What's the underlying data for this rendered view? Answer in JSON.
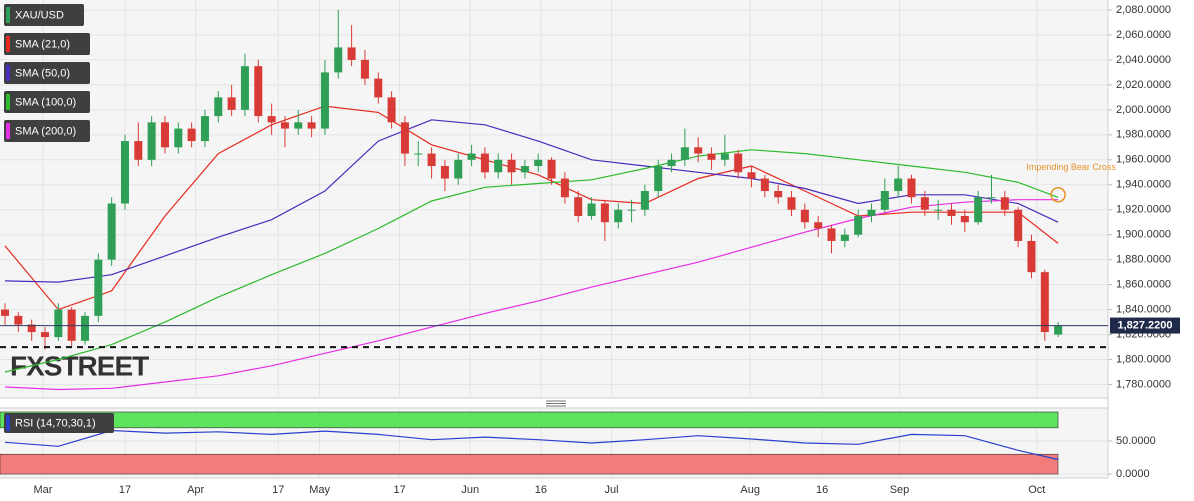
{
  "chart_data": [
    {
      "type": "candlestick",
      "name": "XAU/USD",
      "up_color": "#2e9f55",
      "down_color": "#d83b35",
      "x": [
        0,
        1,
        2,
        3,
        4,
        5,
        6,
        7,
        8,
        9,
        10,
        11,
        12,
        13,
        14,
        15,
        16,
        17,
        18,
        19,
        20,
        21,
        22,
        23,
        24,
        25,
        26,
        27,
        28,
        29,
        30,
        31,
        32,
        33,
        34,
        35,
        36,
        37,
        38,
        39,
        40,
        41,
        42,
        43,
        44,
        45,
        46,
        47,
        48,
        49,
        50,
        51,
        52,
        53,
        54,
        55,
        56,
        57,
        58,
        59,
        60,
        61,
        62,
        63,
        64,
        65,
        66,
        67,
        68,
        69,
        70,
        71,
        72,
        73,
        74,
        75,
        76,
        77,
        78,
        79
      ],
      "ohlc": [
        [
          1840,
          1845,
          1828,
          1835
        ],
        [
          1835,
          1838,
          1822,
          1828
        ],
        [
          1828,
          1832,
          1815,
          1822
        ],
        [
          1822,
          1826,
          1808,
          1818
        ],
        [
          1818,
          1845,
          1815,
          1840
        ],
        [
          1840,
          1842,
          1810,
          1815
        ],
        [
          1815,
          1838,
          1812,
          1835
        ],
        [
          1835,
          1885,
          1830,
          1880
        ],
        [
          1880,
          1930,
          1875,
          1925
        ],
        [
          1925,
          1980,
          1920,
          1975
        ],
        [
          1975,
          1990,
          1955,
          1960
        ],
        [
          1960,
          1995,
          1955,
          1990
        ],
        [
          1990,
          1995,
          1965,
          1970
        ],
        [
          1970,
          1990,
          1965,
          1985
        ],
        [
          1985,
          1990,
          1970,
          1975
        ],
        [
          1975,
          2000,
          1970,
          1995
        ],
        [
          1995,
          2015,
          1990,
          2010
        ],
        [
          2010,
          2020,
          1995,
          2000
        ],
        [
          2000,
          2045,
          1995,
          2035
        ],
        [
          2035,
          2040,
          1990,
          1995
        ],
        [
          1995,
          2005,
          1980,
          1990
        ],
        [
          1990,
          1995,
          1970,
          1985
        ],
        [
          1985,
          2000,
          1980,
          1990
        ],
        [
          1990,
          1995,
          1978,
          1985
        ],
        [
          1985,
          2040,
          1980,
          2030
        ],
        [
          2030,
          2080,
          2025,
          2050
        ],
        [
          2050,
          2068,
          2035,
          2040
        ],
        [
          2040,
          2048,
          2020,
          2025
        ],
        [
          2025,
          2030,
          2005,
          2010
        ],
        [
          2010,
          2015,
          1985,
          1990
        ],
        [
          1990,
          1995,
          1955,
          1965
        ],
        [
          1965,
          1975,
          1955,
          1965
        ],
        [
          1965,
          1970,
          1945,
          1955
        ],
        [
          1955,
          1960,
          1935,
          1945
        ],
        [
          1945,
          1965,
          1940,
          1960
        ],
        [
          1960,
          1972,
          1955,
          1965
        ],
        [
          1965,
          1970,
          1945,
          1950
        ],
        [
          1950,
          1965,
          1945,
          1960
        ],
        [
          1960,
          1965,
          1940,
          1950
        ],
        [
          1950,
          1960,
          1945,
          1955
        ],
        [
          1955,
          1965,
          1950,
          1960
        ],
        [
          1960,
          1962,
          1940,
          1945
        ],
        [
          1945,
          1950,
          1925,
          1930
        ],
        [
          1930,
          1935,
          1910,
          1915
        ],
        [
          1915,
          1930,
          1912,
          1925
        ],
        [
          1925,
          1928,
          1895,
          1910
        ],
        [
          1910,
          1925,
          1905,
          1920
        ],
        [
          1920,
          1928,
          1910,
          1920
        ],
        [
          1920,
          1940,
          1915,
          1935
        ],
        [
          1935,
          1960,
          1930,
          1955
        ],
        [
          1955,
          1965,
          1950,
          1960
        ],
        [
          1960,
          1985,
          1955,
          1970
        ],
        [
          1970,
          1978,
          1958,
          1965
        ],
        [
          1965,
          1970,
          1952,
          1960
        ],
        [
          1960,
          1980,
          1955,
          1965
        ],
        [
          1965,
          1968,
          1945,
          1950
        ],
        [
          1950,
          1955,
          1938,
          1945
        ],
        [
          1945,
          1948,
          1930,
          1935
        ],
        [
          1935,
          1940,
          1925,
          1930
        ],
        [
          1930,
          1935,
          1915,
          1920
        ],
        [
          1920,
          1925,
          1905,
          1910
        ],
        [
          1910,
          1915,
          1898,
          1905
        ],
        [
          1905,
          1908,
          1885,
          1895
        ],
        [
          1895,
          1905,
          1890,
          1900
        ],
        [
          1900,
          1920,
          1898,
          1915
        ],
        [
          1915,
          1925,
          1910,
          1920
        ],
        [
          1920,
          1945,
          1918,
          1935
        ],
        [
          1935,
          1955,
          1930,
          1945
        ],
        [
          1945,
          1948,
          1925,
          1930
        ],
        [
          1930,
          1935,
          1915,
          1920
        ],
        [
          1920,
          1928,
          1912,
          1920
        ],
        [
          1920,
          1925,
          1908,
          1915
        ],
        [
          1915,
          1920,
          1902,
          1910
        ],
        [
          1910,
          1935,
          1908,
          1930
        ],
        [
          1930,
          1948,
          1925,
          1930
        ],
        [
          1930,
          1935,
          1915,
          1920
        ],
        [
          1920,
          1922,
          1890,
          1895
        ],
        [
          1895,
          1900,
          1865,
          1870
        ],
        [
          1870,
          1872,
          1815,
          1822
        ],
        [
          1820,
          1830,
          1818,
          1827.22
        ]
      ],
      "series": [
        {
          "name": "SMA (21,0)",
          "color": "#e52a1f",
          "x": [
            0,
            4,
            8,
            12,
            16,
            20,
            24,
            28,
            32,
            36,
            40,
            44,
            48,
            52,
            56,
            60,
            64,
            68,
            72,
            76,
            79
          ],
          "values": [
            1891,
            1840,
            1855,
            1915,
            1965,
            1988,
            2003,
            1998,
            1972,
            1960,
            1948,
            1928,
            1925,
            1945,
            1955,
            1935,
            1915,
            1918,
            1918,
            1918,
            1893
          ]
        },
        {
          "name": "SMA (50,0)",
          "color": "#4a2bbd",
          "x": [
            0,
            4,
            8,
            12,
            16,
            20,
            24,
            28,
            32,
            36,
            40,
            44,
            48,
            52,
            56,
            60,
            64,
            68,
            72,
            76,
            79
          ],
          "values": [
            1863,
            1862,
            1868,
            1883,
            1898,
            1912,
            1935,
            1975,
            1992,
            1988,
            1975,
            1960,
            1955,
            1950,
            1945,
            1937,
            1925,
            1932,
            1932,
            1925,
            1910
          ]
        },
        {
          "name": "SMA (100,0)",
          "color": "#2dbb2d",
          "x": [
            0,
            4,
            8,
            12,
            16,
            20,
            24,
            28,
            32,
            36,
            40,
            44,
            48,
            52,
            56,
            60,
            64,
            68,
            72,
            76,
            79
          ],
          "values": [
            1790,
            1800,
            1812,
            1830,
            1850,
            1868,
            1885,
            1905,
            1927,
            1938,
            1941,
            1944,
            1953,
            1963,
            1968,
            1965,
            1960,
            1955,
            1950,
            1942,
            1930
          ]
        },
        {
          "name": "SMA (200,0)",
          "color": "#e62ee6",
          "x": [
            0,
            4,
            8,
            12,
            16,
            20,
            24,
            28,
            32,
            36,
            40,
            44,
            48,
            52,
            56,
            60,
            64,
            68,
            72,
            76,
            79
          ],
          "values": [
            1778,
            1776,
            1777,
            1782,
            1787,
            1795,
            1805,
            1815,
            1826,
            1837,
            1847,
            1858,
            1868,
            1878,
            1890,
            1902,
            1913,
            1922,
            1926,
            1928,
            1928
          ]
        }
      ],
      "price_line": {
        "value": 1827.22,
        "label": "1,827.2200"
      },
      "support_line": 1810,
      "annotation": {
        "text": "Impending  Bear Cross",
        "x": 79,
        "y": 1932,
        "color": "#e8922a"
      },
      "watermark": "FXSTREET",
      "xlim": [
        -0.375,
        82.74
      ],
      "ylim": [
        1770,
        2088
      ],
      "yticks": [
        {
          "value": 1780,
          "label": "1,780.0000"
        },
        {
          "value": 1800,
          "label": "1,800.0000"
        },
        {
          "value": 1820,
          "label": "1,820.0000"
        },
        {
          "value": 1840,
          "label": "1,840.0000"
        },
        {
          "value": 1860,
          "label": "1,860.0000"
        },
        {
          "value": 1880,
          "label": "1,880.0000"
        },
        {
          "value": 1900,
          "label": "1,900.0000"
        },
        {
          "value": 1920,
          "label": "1,920.0000"
        },
        {
          "value": 1940,
          "label": "1,940.0000"
        },
        {
          "value": 1960,
          "label": "1,960.0000"
        },
        {
          "value": 1980,
          "label": "1,980.0000"
        },
        {
          "value": 2000,
          "label": "2,000.0000"
        },
        {
          "value": 2020,
          "label": "2,020.0000"
        },
        {
          "value": 2040,
          "label": "2,040.0000"
        },
        {
          "value": 2060,
          "label": "2,060.0000"
        },
        {
          "value": 2080,
          "label": "2,080.0000"
        }
      ],
      "grid": true
    },
    {
      "type": "line",
      "series": [
        {
          "name": "RSI (14,70,30,1)",
          "color": "#2a3fd0",
          "x": [
            0,
            4,
            8,
            12,
            16,
            20,
            24,
            28,
            32,
            36,
            40,
            44,
            48,
            52,
            56,
            60,
            64,
            68,
            72,
            76,
            79
          ],
          "values": [
            48,
            42,
            66,
            62,
            64,
            60,
            65,
            60,
            52,
            56,
            52,
            47,
            52,
            58,
            53,
            47,
            45,
            60,
            58,
            36,
            22
          ]
        }
      ],
      "bands": [
        {
          "from": 70,
          "to": 100,
          "color": "#5ee35e"
        },
        {
          "from": 0,
          "to": 30,
          "color": "#f27b7b"
        }
      ],
      "xlim": [
        -0.375,
        82.74
      ],
      "ylim": [
        -9,
        101.5
      ],
      "yticks": [
        {
          "value": 50,
          "label": "50.0000"
        },
        {
          "value": 0,
          "label": "0.0000"
        }
      ],
      "xticks": [
        {
          "value": 2.85,
          "label": "Mar"
        },
        {
          "value": 9.0,
          "label": "17"
        },
        {
          "value": 14.3,
          "label": "Apr"
        },
        {
          "value": 20.5,
          "label": "17"
        },
        {
          "value": 23.6,
          "label": "May"
        },
        {
          "value": 29.6,
          "label": "17"
        },
        {
          "value": 34.9,
          "label": "Jun"
        },
        {
          "value": 40.2,
          "label": "16"
        },
        {
          "value": 45.5,
          "label": "Jul"
        },
        {
          "value": 55.9,
          "label": "Aug"
        },
        {
          "value": 61.3,
          "label": "16"
        },
        {
          "value": 67.1,
          "label": "Sep"
        },
        {
          "value": 77.4,
          "label": "Oct"
        }
      ],
      "grid": true
    }
  ]
}
